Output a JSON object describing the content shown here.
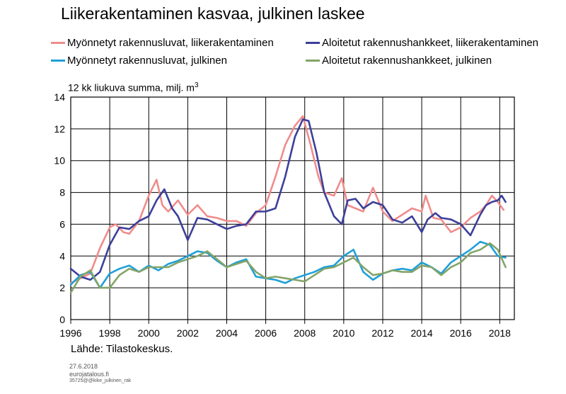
{
  "title": "Liikerakentaminen kasvaa, julkinen laskee",
  "source": "Lähde: Tilastokeskus.",
  "footer": {
    "date": "27.6.2018",
    "site": "eurojatalous.fi",
    "code": "35725@@kike_julkinen_rak"
  },
  "chart_data": {
    "type": "line",
    "title": "Liikerakentaminen kasvaa, julkinen laskee",
    "ylabel_main": "12 kk liukuva summa, milj. m",
    "ylabel_sup": "3",
    "xlabel": "",
    "xlim": [
      1996,
      2018.75
    ],
    "ylim": [
      0,
      14
    ],
    "grid": true,
    "legend": "top",
    "x_ticks": [
      "1996",
      "1998",
      "2000",
      "2002",
      "2004",
      "2006",
      "2008",
      "2010",
      "2012",
      "2014",
      "2016",
      "2018"
    ],
    "y_ticks": [
      "0",
      "2",
      "4",
      "6",
      "8",
      "10",
      "12",
      "14"
    ],
    "series": [
      {
        "name": "Myönnetyt rakennusluvat, liikerakentaminen",
        "color": "#f08c8c",
        "x": [
          1996,
          1996.5,
          1997,
          1997.5,
          1998,
          1998.3,
          1998.7,
          1999,
          1999.5,
          2000,
          2000.4,
          2000.7,
          2001,
          2001.5,
          2002,
          2002.5,
          2003,
          2003.5,
          2004,
          2004.5,
          2005,
          2005.5,
          2006,
          2006.5,
          2007,
          2007.5,
          2007.9,
          2008.3,
          2008.7,
          2009,
          2009.5,
          2009.9,
          2010.2,
          2010.6,
          2011,
          2011.5,
          2012,
          2012.5,
          2013,
          2013.5,
          2014,
          2014.2,
          2014.6,
          2015,
          2015.5,
          2016,
          2016.5,
          2017,
          2017.3,
          2017.6,
          2017.9,
          2018.2
        ],
        "y": [
          2.3,
          2.6,
          2.9,
          4.5,
          5.8,
          6.0,
          5.5,
          5.4,
          6.2,
          7.8,
          8.8,
          7.2,
          6.8,
          7.5,
          6.6,
          7.2,
          6.5,
          6.4,
          6.2,
          6.2,
          5.9,
          6.7,
          7.2,
          9.0,
          11.0,
          12.2,
          12.8,
          11.0,
          9.0,
          8.0,
          7.8,
          8.9,
          7.2,
          7.0,
          6.8,
          8.3,
          6.8,
          6.2,
          6.6,
          7.0,
          6.8,
          7.8,
          6.4,
          6.3,
          5.5,
          5.8,
          6.4,
          6.8,
          7.2,
          7.8,
          7.4,
          6.9
        ]
      },
      {
        "name": "Aloitetut rakennushankkeet, liikerakentaminen",
        "color": "#3c3f9a",
        "x": [
          1996,
          1996.5,
          1997,
          1997.5,
          1998,
          1998.5,
          1999,
          1999.5,
          2000,
          2000.4,
          2000.8,
          2001.2,
          2001.5,
          2002,
          2002.5,
          2003,
          2003.5,
          2004,
          2004.5,
          2005,
          2005.5,
          2006,
          2006.5,
          2007,
          2007.5,
          2007.9,
          2008.2,
          2008.6,
          2009,
          2009.5,
          2009.9,
          2010.2,
          2010.6,
          2011,
          2011.5,
          2012,
          2012.5,
          2013,
          2013.5,
          2014,
          2014.3,
          2014.7,
          2015,
          2015.5,
          2016,
          2016.5,
          2017,
          2017.3,
          2017.6,
          2017.9,
          2018.1,
          2018.3
        ],
        "y": [
          3.2,
          2.7,
          2.5,
          3.0,
          4.7,
          5.8,
          5.7,
          6.2,
          6.5,
          7.5,
          8.2,
          7.0,
          6.5,
          5.0,
          6.4,
          6.3,
          6.0,
          5.7,
          5.9,
          6.0,
          6.8,
          6.8,
          7.0,
          9.0,
          11.5,
          12.6,
          12.5,
          10.5,
          8.0,
          6.5,
          6.0,
          7.5,
          7.6,
          7.0,
          7.4,
          7.2,
          6.3,
          6.1,
          6.5,
          5.5,
          6.3,
          6.7,
          6.4,
          6.3,
          6.0,
          5.3,
          6.6,
          7.2,
          7.4,
          7.5,
          7.8,
          7.4
        ]
      },
      {
        "name": "Myönnetyt rakennusluvat, julkinen",
        "color": "#1ea0d8",
        "x": [
          1996,
          1996.5,
          1997,
          1997.5,
          1998,
          1998.5,
          1999,
          1999.5,
          2000,
          2000.5,
          2001,
          2001.5,
          2002,
          2002.5,
          2003,
          2003.5,
          2004,
          2004.5,
          2005,
          2005.5,
          2006,
          2006.5,
          2007,
          2007.5,
          2008,
          2008.5,
          2009,
          2009.5,
          2010,
          2010.5,
          2011,
          2011.5,
          2012,
          2012.5,
          2013,
          2013.5,
          2014,
          2014.5,
          2015,
          2015.5,
          2016,
          2016.5,
          2017,
          2017.5,
          2017.9,
          2018.3
        ],
        "y": [
          2.2,
          2.8,
          3.0,
          2.0,
          2.9,
          3.2,
          3.4,
          3.0,
          3.4,
          3.1,
          3.5,
          3.7,
          4.0,
          4.3,
          4.2,
          3.7,
          3.3,
          3.6,
          3.8,
          2.7,
          2.6,
          2.5,
          2.3,
          2.6,
          2.8,
          3.0,
          3.3,
          3.4,
          4.0,
          4.4,
          3.0,
          2.5,
          2.9,
          3.1,
          3.2,
          3.1,
          3.6,
          3.3,
          2.9,
          3.6,
          4.0,
          4.4,
          4.9,
          4.7,
          4.0,
          3.9
        ]
      },
      {
        "name": "Aloitetut rakennushankkeet, julkinen",
        "color": "#84a468",
        "x": [
          1996,
          1996.5,
          1997,
          1997.5,
          1998,
          1998.5,
          1999,
          1999.5,
          2000,
          2000.5,
          2001,
          2001.5,
          2002,
          2002.5,
          2003,
          2003.5,
          2004,
          2004.5,
          2005,
          2005.5,
          2006,
          2006.5,
          2007,
          2007.5,
          2008,
          2008.5,
          2009,
          2009.5,
          2010,
          2010.5,
          2011,
          2011.5,
          2012,
          2012.5,
          2013,
          2013.5,
          2014,
          2014.5,
          2015,
          2015.5,
          2016,
          2016.5,
          2017,
          2017.5,
          2017.9,
          2018.3
        ],
        "y": [
          1.7,
          2.7,
          3.1,
          2.0,
          2.0,
          2.8,
          3.2,
          3.0,
          3.3,
          3.3,
          3.3,
          3.6,
          3.8,
          4.0,
          4.3,
          3.8,
          3.3,
          3.5,
          3.7,
          3.0,
          2.6,
          2.7,
          2.6,
          2.5,
          2.4,
          2.8,
          3.2,
          3.3,
          3.6,
          3.9,
          3.3,
          2.8,
          2.9,
          3.1,
          3.0,
          3.0,
          3.4,
          3.3,
          2.8,
          3.3,
          3.6,
          4.2,
          4.4,
          4.8,
          4.4,
          3.3
        ]
      }
    ]
  }
}
